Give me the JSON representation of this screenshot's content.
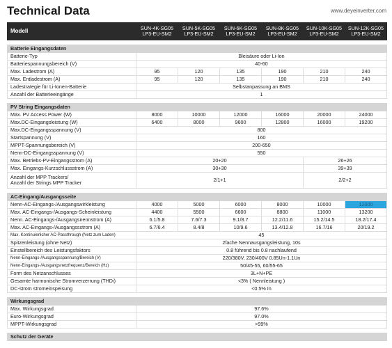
{
  "header": {
    "title": "Technical Data",
    "url": "www.deyeinverter.com"
  },
  "model_col": "Modell",
  "models": [
    [
      "SUN-4K-SG05",
      "LP3-EU-SM2"
    ],
    [
      "SUN-5K-SG05",
      "LP3-EU-SM2"
    ],
    [
      "SUN-6K-SG05",
      "LP3-EU-SM2"
    ],
    [
      "SUN-8K-SG05",
      "LP3-EU-SM2"
    ],
    [
      "SUN-10K-SG05",
      "LP3-EU-SM2"
    ],
    [
      "SUN-12K-SG05",
      "LP3-EU-SM2"
    ]
  ],
  "sections": [
    {
      "title": "Batterie Eingangsdaten",
      "rows": [
        {
          "label": "Batterie-Typ",
          "groups": [
            [
              6,
              "Bleisäure oder Li-Ion"
            ]
          ]
        },
        {
          "label": "Batteriespannungsbereich (V)",
          "groups": [
            [
              6,
              "40-60"
            ]
          ]
        },
        {
          "label": "Max. Ladestrom (A)",
          "groups": [
            [
              1,
              "95"
            ],
            [
              1,
              "120"
            ],
            [
              1,
              "135"
            ],
            [
              1,
              "190"
            ],
            [
              1,
              "210"
            ],
            [
              1,
              "240"
            ]
          ]
        },
        {
          "label": "Max. Entladestrom (A)",
          "groups": [
            [
              1,
              "95"
            ],
            [
              1,
              "120"
            ],
            [
              1,
              "135"
            ],
            [
              1,
              "190"
            ],
            [
              1,
              "210"
            ],
            [
              1,
              "240"
            ]
          ]
        },
        {
          "label": "Ladestrategie für Li-Ionen-Batterie",
          "groups": [
            [
              6,
              "Selbstanpassung an BMS"
            ]
          ]
        },
        {
          "label": "Anzahl der Batterieeingänge",
          "groups": [
            [
              6,
              "1"
            ]
          ]
        }
      ]
    },
    {
      "title": "PV String Eingangsdaten",
      "rows": [
        {
          "label": "Max. PV Access Power (W)",
          "groups": [
            [
              1,
              "8000"
            ],
            [
              1,
              "10000"
            ],
            [
              1,
              "12000"
            ],
            [
              1,
              "16000"
            ],
            [
              1,
              "20000"
            ],
            [
              1,
              "24000"
            ]
          ]
        },
        {
          "label": "Max.DC-Eingangsleistung (W)",
          "groups": [
            [
              1,
              "6400"
            ],
            [
              1,
              "8000"
            ],
            [
              1,
              "9600"
            ],
            [
              1,
              "12800"
            ],
            [
              1,
              "16000"
            ],
            [
              1,
              "19200"
            ]
          ]
        },
        {
          "label": "Max.DC-Eingangsspannung (V)",
          "groups": [
            [
              6,
              "800"
            ]
          ]
        },
        {
          "label": "Startspannung (V)",
          "groups": [
            [
              6,
              "160"
            ]
          ]
        },
        {
          "label": "MPPT-Spannungsbereich (V)",
          "groups": [
            [
              6,
              "200-650"
            ]
          ]
        },
        {
          "label": "Nenn-DC-Eingangsspannung (V)",
          "groups": [
            [
              6,
              "550"
            ]
          ]
        },
        {
          "label": "Max. Betriebs-PV-Eingangsstrom (A)",
          "groups": [
            [
              4,
              "20+20"
            ],
            [
              2,
              "26+26"
            ]
          ]
        },
        {
          "label": "Max. Eingangs-Kurzschlussstrom (A)",
          "groups": [
            [
              4,
              "30+30"
            ],
            [
              2,
              "39+39"
            ]
          ]
        },
        {
          "label": "Anzahl der MPP Trackers/",
          "label2": "Anzahl der Strings MPP Tracker",
          "tall": true,
          "groups": [
            [
              4,
              "2/1+1"
            ],
            [
              2,
              "2/2+2"
            ]
          ]
        }
      ]
    },
    {
      "title": "AC-Eingang/Ausgangsseite",
      "rows": [
        {
          "label": "Nenn-AC-Eingangs-/Ausgangswirkleistung",
          "groups": [
            [
              1,
              "4000"
            ],
            [
              1,
              "5000"
            ],
            [
              1,
              "6000"
            ],
            [
              1,
              "8000"
            ],
            [
              1,
              "10000"
            ],
            [
              1,
              "12000"
            ]
          ],
          "highlight": 5
        },
        {
          "label": "Max. AC-Eingangs-/Ausgangs-Scheinleistung",
          "groups": [
            [
              1,
              "4400"
            ],
            [
              1,
              "5500"
            ],
            [
              1,
              "6600"
            ],
            [
              1,
              "8800"
            ],
            [
              1,
              "11000"
            ],
            [
              1,
              "13200"
            ]
          ]
        },
        {
          "label": "Nenn. AC-Eingangs-/Ausgangsnennstrom (A)",
          "groups": [
            [
              1,
              "6.1/5.8"
            ],
            [
              1,
              "7.6/7.3"
            ],
            [
              1,
              "9.1/8.7"
            ],
            [
              1,
              "12.2/11.6"
            ],
            [
              1,
              "15.2/14.5"
            ],
            [
              1,
              "18.2/17.4"
            ]
          ]
        },
        {
          "label": "Max. AC-Eingangs-/Ausgangssstrom (A)",
          "groups": [
            [
              1,
              "6.7/6.4"
            ],
            [
              1,
              "8.4/8"
            ],
            [
              1,
              "10/9.6"
            ],
            [
              1,
              "13.4/12.8"
            ],
            [
              1,
              "16.7/16"
            ],
            [
              1,
              "20/19.2"
            ]
          ]
        },
        {
          "label": "Max. Kontinuierlicher AC-Passthrough (Netz zum Laden)",
          "small": true,
          "groups": [
            [
              6,
              "45"
            ]
          ]
        },
        {
          "label": "Spitzenleistung (ohne Netz)",
          "groups": [
            [
              6,
              "2fache Nennausgangsleistung, 10s"
            ]
          ]
        },
        {
          "label": "Einstellbereich des Leistungsfaktors",
          "groups": [
            [
              6,
              "0.8 führend bis 0.8 nachlaufend"
            ]
          ]
        },
        {
          "label": "Nenn-Eingangs-/Ausgangsspannung/Bereich (V)",
          "small": true,
          "groups": [
            [
              6,
              "220/380V, 230/400V 0.85Un-1.1Un"
            ]
          ]
        },
        {
          "label": "Nenn-Eingangs-/Ausgangsnetzfrequenz/Bereich (Hz)",
          "small": true,
          "groups": [
            [
              6,
              "50/45-55, 60/55-65"
            ]
          ]
        },
        {
          "label": "Form des Netzanschlusses",
          "groups": [
            [
              6,
              "3L+N+PE"
            ]
          ]
        },
        {
          "label": "Gesamte harmonische Stromverzerrung (THDi)",
          "groups": [
            [
              6,
              "<3% ( Nennleistung )"
            ]
          ]
        },
        {
          "label": "DC-strom stromeinspeisung",
          "groups": [
            [
              6,
              "<0.5% In"
            ]
          ]
        }
      ]
    },
    {
      "title": "Wirkungsgrad",
      "rows": [
        {
          "label": "Max. Wirkungsgrad",
          "groups": [
            [
              6,
              "97.6%"
            ]
          ]
        },
        {
          "label": "Euro-Wirkungsgrad",
          "groups": [
            [
              6,
              "97.0%"
            ]
          ]
        },
        {
          "label": "MPPT-Wirkungsgrad",
          "groups": [
            [
              6,
              ">99%"
            ]
          ]
        }
      ]
    },
    {
      "title": "Schutz der Geräte",
      "rows": []
    }
  ]
}
